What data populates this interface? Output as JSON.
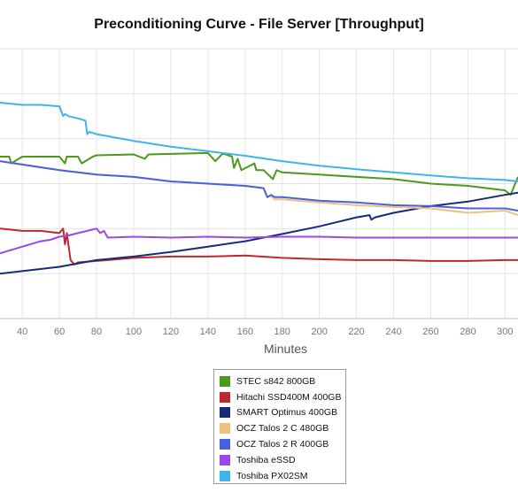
{
  "chart_data": {
    "type": "line",
    "title": "Preconditioning Curve - File Server [Throughput]",
    "xlabel": "Minutes",
    "ylabel": "",
    "xlim": [
      28,
      307
    ],
    "ylim": [
      0,
      6
    ],
    "grid": true,
    "legend_position": "bottom",
    "x_ticks": [
      40,
      60,
      80,
      100,
      120,
      140,
      160,
      180,
      200,
      220,
      240,
      260,
      280,
      300
    ],
    "series": [
      {
        "name": "STEC s842 800GB",
        "color": "#4a9a1c",
        "x": [
          28,
          30,
          33,
          34,
          40,
          60,
          63,
          64,
          70,
          72,
          78,
          80,
          100,
          106,
          108,
          140,
          144,
          148,
          153,
          154,
          156,
          158,
          165,
          166,
          170,
          175,
          177,
          180,
          200,
          220,
          240,
          260,
          280,
          300,
          303,
          305,
          307
        ],
        "y": [
          3.6,
          3.6,
          3.6,
          3.45,
          3.6,
          3.6,
          3.45,
          3.6,
          3.6,
          3.45,
          3.6,
          3.63,
          3.65,
          3.55,
          3.65,
          3.68,
          3.5,
          3.67,
          3.6,
          3.35,
          3.55,
          3.3,
          3.45,
          3.3,
          3.3,
          3.1,
          3.3,
          3.25,
          3.2,
          3.15,
          3.1,
          3.0,
          2.95,
          2.85,
          2.75,
          2.95,
          3.15
        ]
      },
      {
        "name": "Hitachi SSD400M 400GB",
        "color": "#c0282a",
        "x": [
          28,
          40,
          50,
          60,
          62,
          63,
          64,
          65,
          66,
          68,
          70,
          80,
          100,
          120,
          140,
          160,
          180,
          200,
          220,
          240,
          260,
          280,
          300,
          307
        ],
        "y": [
          2.0,
          1.95,
          1.95,
          1.9,
          2.0,
          1.65,
          1.9,
          1.6,
          1.3,
          1.2,
          1.25,
          1.28,
          1.35,
          1.38,
          1.38,
          1.4,
          1.35,
          1.32,
          1.3,
          1.3,
          1.28,
          1.28,
          1.3,
          1.3
        ]
      },
      {
        "name": "SMART Optimus 400GB",
        "color": "#1a2a7a",
        "x": [
          28,
          60,
          80,
          100,
          120,
          140,
          160,
          180,
          200,
          220,
          227,
          228,
          230,
          240,
          260,
          280,
          300,
          307
        ],
        "y": [
          1.0,
          1.15,
          1.3,
          1.38,
          1.48,
          1.6,
          1.72,
          1.88,
          2.05,
          2.25,
          2.3,
          2.2,
          2.25,
          2.35,
          2.5,
          2.6,
          2.75,
          2.8
        ]
      },
      {
        "name": "OCZ Talos 2 C 480GB",
        "color": "#f0c080",
        "x": [
          28,
          60,
          80,
          100,
          120,
          140,
          160,
          170,
          172,
          174,
          176,
          180,
          200,
          220,
          240,
          260,
          280,
          300,
          307
        ],
        "y": [
          3.5,
          3.3,
          3.2,
          3.15,
          3.05,
          3.0,
          2.95,
          2.9,
          2.7,
          2.72,
          2.65,
          2.65,
          2.58,
          2.52,
          2.48,
          2.45,
          2.35,
          2.4,
          2.3
        ]
      },
      {
        "name": "OCZ Talos 2 R 400GB",
        "color": "#4a60e0",
        "x": [
          28,
          60,
          80,
          100,
          120,
          140,
          160,
          170,
          172,
          174,
          176,
          180,
          200,
          220,
          240,
          260,
          280,
          300,
          307
        ],
        "y": [
          3.5,
          3.3,
          3.2,
          3.15,
          3.05,
          3.0,
          2.95,
          2.9,
          2.7,
          2.75,
          2.7,
          2.7,
          2.62,
          2.58,
          2.52,
          2.5,
          2.45,
          2.45,
          2.4
        ]
      },
      {
        "name": "Toshiba eSSD",
        "color": "#9a48e6",
        "x": [
          28,
          40,
          50,
          55,
          60,
          65,
          70,
          75,
          80,
          82,
          84,
          86,
          100,
          120,
          140,
          160,
          180,
          200,
          220,
          240,
          260,
          280,
          300,
          307
        ],
        "y": [
          1.45,
          1.6,
          1.72,
          1.75,
          1.82,
          1.85,
          1.9,
          1.95,
          2.0,
          1.9,
          1.95,
          1.8,
          1.82,
          1.8,
          1.82,
          1.8,
          1.82,
          1.82,
          1.8,
          1.8,
          1.8,
          1.8,
          1.8,
          1.8
        ]
      },
      {
        "name": "Toshiba PX02SM",
        "color": "#40b4e8",
        "x": [
          28,
          40,
          50,
          60,
          62,
          63,
          65,
          70,
          74,
          75,
          76,
          80,
          100,
          120,
          140,
          160,
          180,
          200,
          220,
          240,
          260,
          280,
          300,
          307
        ],
        "y": [
          4.8,
          4.75,
          4.75,
          4.72,
          4.5,
          4.55,
          4.5,
          4.45,
          4.4,
          4.1,
          4.15,
          4.1,
          3.95,
          3.82,
          3.72,
          3.62,
          3.5,
          3.4,
          3.32,
          3.25,
          3.18,
          3.12,
          3.08,
          3.05
        ]
      }
    ]
  }
}
